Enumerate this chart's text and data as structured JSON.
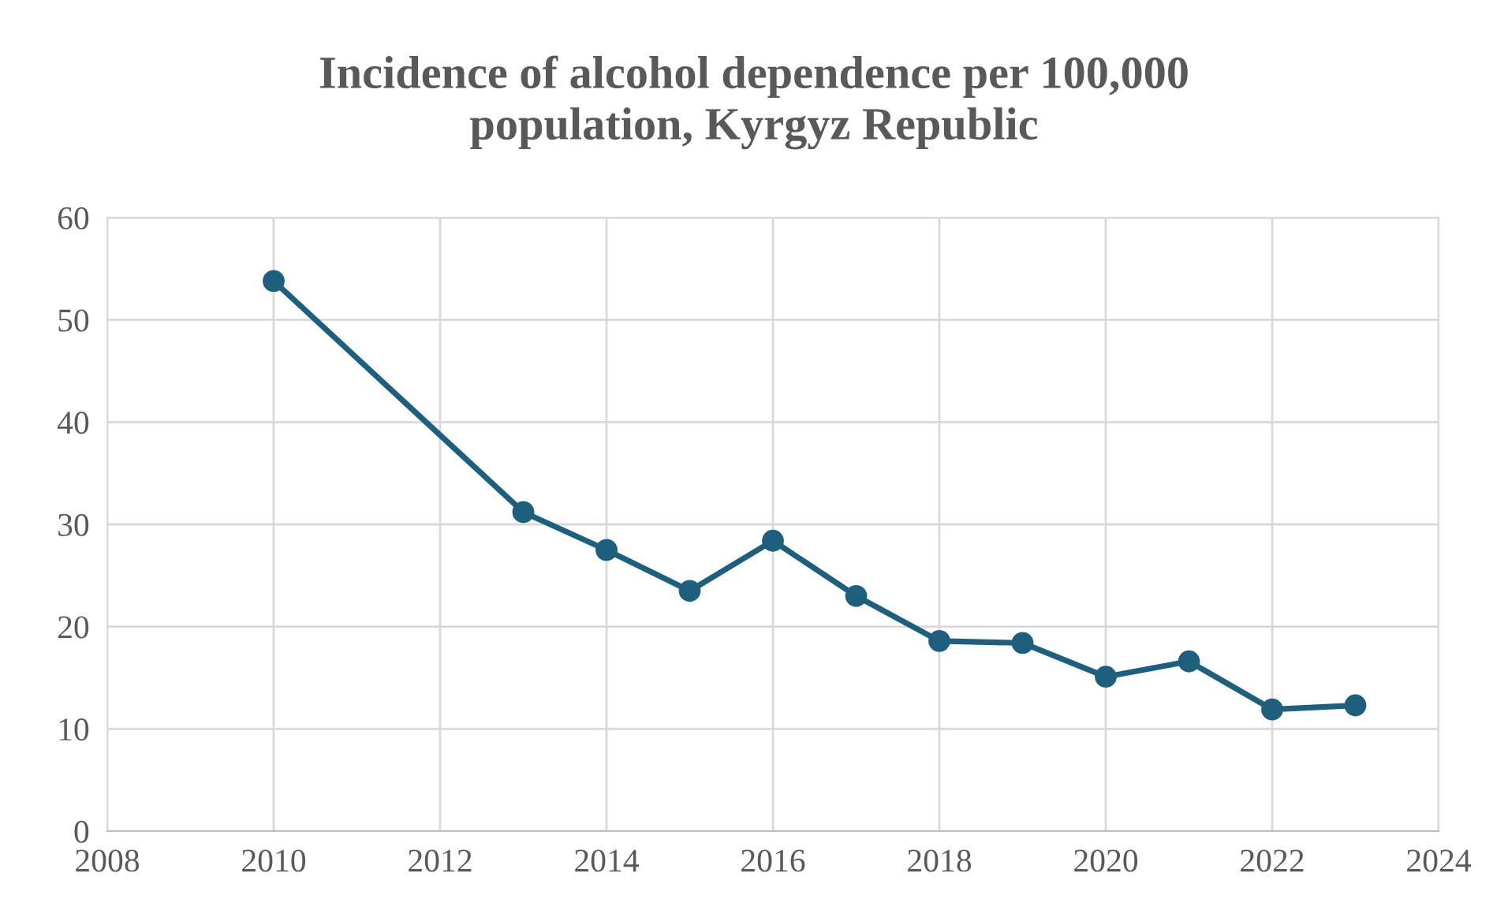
{
  "chart_data": {
    "type": "line",
    "title": "Incidence of alcohol dependence per 100,000\npopulation, Kyrgyz Republic",
    "x": [
      2010,
      2013,
      2014,
      2015,
      2016,
      2017,
      2018,
      2019,
      2020,
      2021,
      2022,
      2023
    ],
    "series": [
      {
        "color": "#1f5f7e",
        "values": [
          53.8,
          31.2,
          27.5,
          23.5,
          28.4,
          23.0,
          18.6,
          18.4,
          15.1,
          16.6,
          11.9,
          12.3
        ]
      }
    ],
    "xlim": [
      2008,
      2024
    ],
    "xticks": [
      2008,
      2010,
      2012,
      2014,
      2016,
      2018,
      2020,
      2022,
      2024
    ],
    "ylim": [
      0,
      60
    ],
    "yticks": [
      0,
      10,
      20,
      30,
      40,
      50,
      60
    ],
    "grid": true,
    "marker": "circle",
    "line_style": "solid",
    "legend": false
  }
}
